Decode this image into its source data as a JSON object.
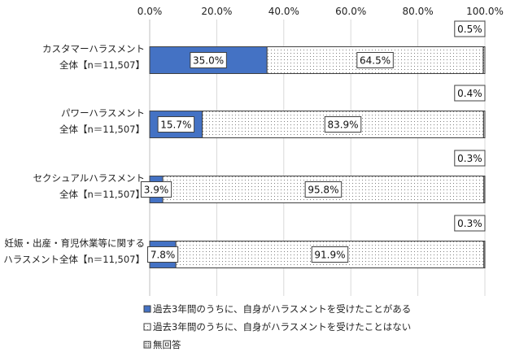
{
  "chart_data": {
    "type": "bar",
    "orientation": "horizontal",
    "stacked": "percent",
    "xlim": [
      0,
      100
    ],
    "x_ticks": [
      "0.0%",
      "20.0%",
      "40.0%",
      "60.0%",
      "80.0%",
      "100.0%"
    ],
    "x_tick_values": [
      0,
      20,
      40,
      60,
      80,
      100
    ],
    "grid": true,
    "legend_position": "bottom",
    "categories": [
      [
        "カスタマーハラスメント",
        "全体【n＝11,507】"
      ],
      [
        "パワーハラスメント",
        "全体【n＝11,507】"
      ],
      [
        "セクシュアルハラスメント",
        "全体【n＝11,507】"
      ],
      [
        "妊娠・出産・育児休業等に関する",
        "ハラスメント全体【n＝11,507】"
      ]
    ],
    "series": [
      {
        "name": "過去3年間のうちに、自身がハラスメントを受けたことがある",
        "color": "#4472c4",
        "pattern": "solid",
        "values": [
          35.0,
          15.7,
          3.9,
          7.8
        ],
        "labels": [
          "35.0%",
          "15.7%",
          "3.9%",
          "7.8%"
        ]
      },
      {
        "name": "過去3年間のうちに、自身がハラスメントを受けたことはない",
        "color": "#ffffff",
        "pattern": "dots-sparse",
        "values": [
          64.5,
          83.9,
          95.8,
          91.9
        ],
        "labels": [
          "64.5%",
          "83.9%",
          "95.8%",
          "91.9%"
        ]
      },
      {
        "name": "無回答",
        "color": "#ffffff",
        "pattern": "dots-dense",
        "values": [
          0.5,
          0.4,
          0.3,
          0.3
        ],
        "labels": [
          "0.5%",
          "0.4%",
          "0.3%",
          "0.3%"
        ]
      }
    ]
  }
}
